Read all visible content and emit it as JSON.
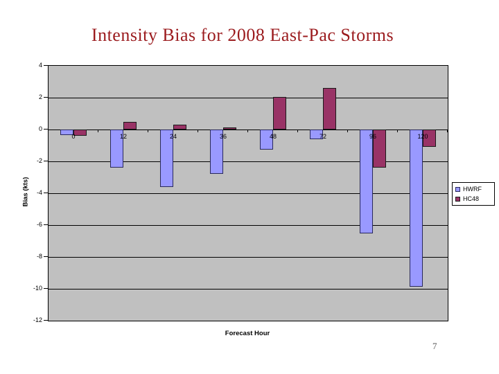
{
  "slide": {
    "title": "Intensity Bias for 2008 East-Pac Storms",
    "title_color": "#9b1b1e",
    "page_number": "7"
  },
  "chart_data": {
    "type": "bar",
    "title": "",
    "xlabel": "Forecast Hour",
    "ylabel": "Bias (kts)",
    "categories": [
      "0",
      "12",
      "24",
      "36",
      "48",
      "72",
      "96",
      "120"
    ],
    "series": [
      {
        "name": "HWRF",
        "color": "#9999ff",
        "border_color": "#28285a",
        "values": [
          -0.35,
          -2.4,
          -3.6,
          -2.8,
          -1.25,
          -0.6,
          -6.5,
          -9.85
        ]
      },
      {
        "name": "HC48",
        "color": "#993366",
        "border_color": "#1a1a1a",
        "values": [
          -0.4,
          0.5,
          0.3,
          0.15,
          2.05,
          2.6,
          -2.4,
          -1.1
        ]
      }
    ],
    "ylim": [
      -12,
      4
    ],
    "yticks": [
      4,
      2,
      0,
      -2,
      -4,
      -6,
      -8,
      -10,
      -12
    ],
    "grid": true,
    "legend_position": "right",
    "plot_bg": "#c0c0c0"
  }
}
